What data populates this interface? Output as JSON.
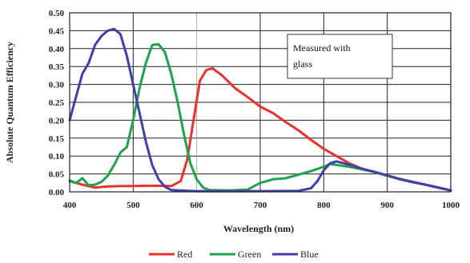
{
  "chart_data": {
    "type": "line",
    "xlabel": "Wavelength (nm)",
    "ylabel": "Absolute Quantum Efficiency",
    "xlim": [
      400,
      1000
    ],
    "ylim": [
      0,
      0.5
    ],
    "x_ticks": [
      "400",
      "500",
      "600",
      "700",
      "800",
      "900",
      "1000"
    ],
    "y_ticks": [
      "0.00",
      "0.05",
      "0.10",
      "0.15",
      "0.20",
      "0.25",
      "0.30",
      "0.35",
      "0.40",
      "0.45",
      "0.50"
    ],
    "grid": true,
    "legend_position": "bottom",
    "annotation": [
      "Measured with",
      "glass"
    ],
    "series": [
      {
        "name": "Red",
        "color": "#e8322a",
        "points": [
          [
            400,
            0.03
          ],
          [
            420,
            0.02
          ],
          [
            440,
            0.012
          ],
          [
            460,
            0.015
          ],
          [
            480,
            0.016
          ],
          [
            500,
            0.016
          ],
          [
            520,
            0.017
          ],
          [
            540,
            0.017
          ],
          [
            560,
            0.016
          ],
          [
            575,
            0.03
          ],
          [
            585,
            0.09
          ],
          [
            595,
            0.2
          ],
          [
            605,
            0.31
          ],
          [
            615,
            0.34
          ],
          [
            625,
            0.345
          ],
          [
            640,
            0.325
          ],
          [
            660,
            0.29
          ],
          [
            680,
            0.265
          ],
          [
            700,
            0.238
          ],
          [
            720,
            0.22
          ],
          [
            740,
            0.195
          ],
          [
            760,
            0.172
          ],
          [
            780,
            0.145
          ],
          [
            800,
            0.12
          ],
          [
            820,
            0.1
          ],
          [
            840,
            0.08
          ],
          [
            860,
            0.065
          ],
          [
            880,
            0.055
          ],
          [
            900,
            0.045
          ],
          [
            920,
            0.035
          ],
          [
            940,
            0.027
          ],
          [
            960,
            0.02
          ],
          [
            980,
            0.012
          ],
          [
            1000,
            0.004
          ]
        ]
      },
      {
        "name": "Green",
        "color": "#1ea34f",
        "points": [
          [
            400,
            0.032
          ],
          [
            410,
            0.025
          ],
          [
            420,
            0.038
          ],
          [
            430,
            0.018
          ],
          [
            440,
            0.02
          ],
          [
            450,
            0.028
          ],
          [
            460,
            0.045
          ],
          [
            470,
            0.075
          ],
          [
            480,
            0.11
          ],
          [
            490,
            0.125
          ],
          [
            500,
            0.2
          ],
          [
            510,
            0.29
          ],
          [
            520,
            0.36
          ],
          [
            530,
            0.41
          ],
          [
            540,
            0.412
          ],
          [
            550,
            0.39
          ],
          [
            560,
            0.33
          ],
          [
            570,
            0.25
          ],
          [
            580,
            0.16
          ],
          [
            590,
            0.08
          ],
          [
            600,
            0.035
          ],
          [
            610,
            0.012
          ],
          [
            620,
            0.005
          ],
          [
            650,
            0.004
          ],
          [
            680,
            0.006
          ],
          [
            700,
            0.025
          ],
          [
            720,
            0.035
          ],
          [
            740,
            0.038
          ],
          [
            760,
            0.048
          ],
          [
            780,
            0.058
          ],
          [
            800,
            0.07
          ],
          [
            810,
            0.078
          ],
          [
            820,
            0.075
          ],
          [
            840,
            0.07
          ],
          [
            860,
            0.063
          ],
          [
            880,
            0.055
          ],
          [
            900,
            0.045
          ],
          [
            920,
            0.035
          ],
          [
            940,
            0.027
          ],
          [
            960,
            0.02
          ],
          [
            980,
            0.012
          ],
          [
            1000,
            0.004
          ]
        ]
      },
      {
        "name": "Blue",
        "color": "#4240a8",
        "points": [
          [
            400,
            0.2
          ],
          [
            410,
            0.265
          ],
          [
            420,
            0.33
          ],
          [
            430,
            0.36
          ],
          [
            440,
            0.41
          ],
          [
            450,
            0.435
          ],
          [
            460,
            0.45
          ],
          [
            470,
            0.455
          ],
          [
            480,
            0.44
          ],
          [
            490,
            0.38
          ],
          [
            500,
            0.3
          ],
          [
            510,
            0.22
          ],
          [
            520,
            0.14
          ],
          [
            530,
            0.075
          ],
          [
            540,
            0.035
          ],
          [
            550,
            0.014
          ],
          [
            560,
            0.005
          ],
          [
            600,
            0.002
          ],
          [
            700,
            0.002
          ],
          [
            760,
            0.003
          ],
          [
            780,
            0.01
          ],
          [
            790,
            0.03
          ],
          [
            800,
            0.06
          ],
          [
            810,
            0.08
          ],
          [
            820,
            0.085
          ],
          [
            840,
            0.076
          ],
          [
            860,
            0.065
          ],
          [
            880,
            0.056
          ],
          [
            900,
            0.046
          ],
          [
            920,
            0.036
          ],
          [
            940,
            0.028
          ],
          [
            960,
            0.02
          ],
          [
            980,
            0.012
          ],
          [
            1000,
            0.004
          ]
        ]
      }
    ]
  }
}
